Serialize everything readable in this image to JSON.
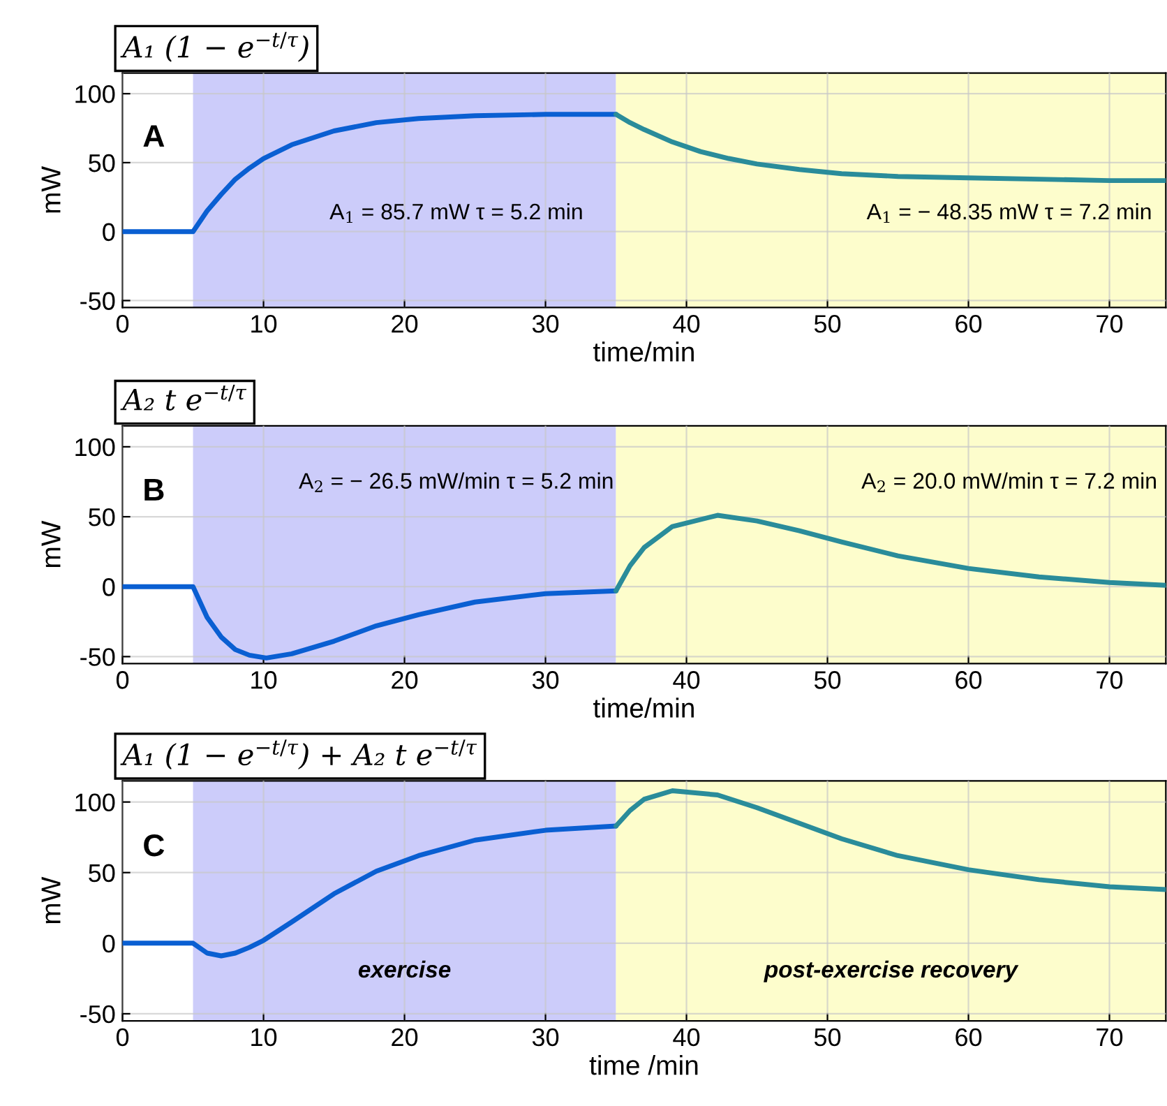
{
  "chart_data": [
    {
      "type": "line",
      "title": "A₁ (1 − e$^{−t/τ}$)",
      "xlabel": "time/min",
      "ylabel": "mW",
      "xlim": [
        0,
        74
      ],
      "ylim": [
        -55,
        115
      ],
      "xticks": [
        0,
        10,
        20,
        30,
        40,
        50,
        60,
        70
      ],
      "yticks": [
        -50,
        0,
        50,
        100
      ],
      "grid": true,
      "series": [
        {
          "color": "#0a5fd2",
          "x": [
            0,
            5,
            6,
            7,
            8,
            9,
            10,
            12,
            15,
            18,
            21,
            25,
            30,
            35
          ],
          "values": [
            0,
            0,
            15,
            27,
            38,
            46,
            53,
            63,
            73,
            79,
            82,
            84,
            85,
            85
          ]
        },
        {
          "color": "#2a8c9a",
          "x": [
            35,
            36,
            37,
            39,
            41,
            43,
            45,
            48,
            51,
            55,
            60,
            65,
            70,
            74
          ],
          "values": [
            85,
            79,
            74,
            65,
            58,
            53,
            49,
            45,
            42,
            40,
            39,
            38,
            37,
            37
          ]
        }
      ],
      "bands": [
        {
          "axis": "x",
          "from": 5,
          "to": 35,
          "color": "#ccccfa"
        },
        {
          "axis": "x",
          "from": 35,
          "to": 74,
          "color": "#fdfdcc"
        }
      ],
      "annotations": [
        "A",
        "A$_{1}$ = 85.7 mW τ = 5.2 min",
        "A$_{1}$ = − 48.35 mW τ = 7.2 min"
      ]
    },
    {
      "type": "line",
      "title": "A₂ t e$^{−t/τ}$",
      "xlabel": "time/min",
      "ylabel": "mW",
      "xlim": [
        0,
        74
      ],
      "ylim": [
        -55,
        115
      ],
      "xticks": [
        0,
        10,
        20,
        30,
        40,
        50,
        60,
        70
      ],
      "yticks": [
        -50,
        0,
        50,
        100
      ],
      "grid": true,
      "series": [
        {
          "color": "#0a5fd2",
          "x": [
            0,
            5,
            6,
            7,
            8,
            9,
            10.2,
            12,
            15,
            18,
            21,
            25,
            30,
            35
          ],
          "values": [
            0,
            0,
            -22,
            -36,
            -45,
            -49,
            -51,
            -48,
            -39,
            -28,
            -20,
            -11,
            -5,
            -3
          ]
        },
        {
          "color": "#2a8c9a",
          "x": [
            35,
            36,
            37,
            39,
            42.2,
            45,
            48,
            51,
            55,
            60,
            65,
            70,
            74
          ],
          "values": [
            -3,
            15,
            28,
            43,
            51,
            47,
            40,
            32,
            22,
            13,
            7,
            3,
            1
          ]
        }
      ],
      "bands": [
        {
          "axis": "x",
          "from": 5,
          "to": 35,
          "color": "#ccccfa"
        },
        {
          "axis": "x",
          "from": 35,
          "to": 74,
          "color": "#fdfdcc"
        }
      ],
      "annotations": [
        "B",
        "A$_{2}$ = − 26.5 mW/min τ = 5.2 min",
        "A$_{2}$ = 20.0 mW/min τ = 7.2 min"
      ]
    },
    {
      "type": "line",
      "title": "A₁ (1 − e$^{−t/τ}$) + A₂ t e$^{−t/τ}$",
      "xlabel": "time /min",
      "ylabel": "mW",
      "xlim": [
        0,
        74
      ],
      "ylim": [
        -55,
        115
      ],
      "xticks": [
        0,
        10,
        20,
        30,
        40,
        50,
        60,
        70
      ],
      "yticks": [
        -50,
        0,
        50,
        100
      ],
      "grid": true,
      "series": [
        {
          "color": "#0a5fd2",
          "x": [
            0,
            5,
            6,
            7,
            8,
            9,
            10,
            12,
            15,
            18,
            21,
            25,
            30,
            35
          ],
          "values": [
            0,
            0,
            -7,
            -9,
            -7,
            -3,
            2,
            15,
            35,
            51,
            62,
            73,
            80,
            83
          ]
        },
        {
          "color": "#2a8c9a",
          "x": [
            35,
            36,
            37,
            39,
            42.2,
            45,
            48,
            51,
            55,
            60,
            65,
            70,
            74
          ],
          "values": [
            83,
            94,
            102,
            108,
            105,
            96,
            85,
            74,
            62,
            52,
            45,
            40,
            38
          ]
        }
      ],
      "bands": [
        {
          "axis": "x",
          "from": 5,
          "to": 35,
          "color": "#ccccfa",
          "label": "exercise"
        },
        {
          "axis": "x",
          "from": 35,
          "to": 74,
          "color": "#fdfdcc",
          "label": "post-exercise recovery"
        }
      ],
      "annotations": [
        "C"
      ]
    }
  ]
}
